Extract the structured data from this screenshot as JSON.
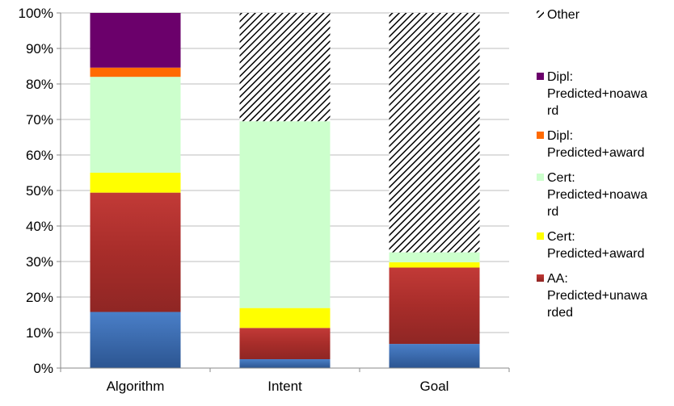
{
  "chart_data": {
    "type": "bar",
    "stacked": true,
    "percent_stacked": true,
    "categories": [
      "Algorithm",
      "Intent",
      "Goal"
    ],
    "y_ticks": [
      "0%",
      "10%",
      "20%",
      "30%",
      "40%",
      "50%",
      "60%",
      "70%",
      "80%",
      "90%",
      "100%"
    ],
    "ylim": [
      0,
      100
    ],
    "grid": true,
    "legend_position": "right",
    "series": [
      {
        "key": "blue",
        "values": [
          15.8,
          2.5,
          6.8
        ],
        "color": "#3f6fb5"
      },
      {
        "key": "aa",
        "name": "AA: Predicted+unawarded",
        "legend_lines": [
          "AA:",
          "Predicted+unawa",
          "rded"
        ],
        "values": [
          33.6,
          8.8,
          21.5
        ],
        "color": "#b5302f"
      },
      {
        "key": "cert_award",
        "name": "Cert: Predicted+award",
        "legend_lines": [
          "Cert:",
          "Predicted+award"
        ],
        "values": [
          5.6,
          5.6,
          1.5
        ],
        "color": "#ffff00"
      },
      {
        "key": "cert_noaward",
        "name": "Cert: Predicted+noaward",
        "legend_lines": [
          "Cert:",
          "Predicted+noawa",
          "rd"
        ],
        "values": [
          27.0,
          52.6,
          2.8
        ],
        "color": "#ccffcc"
      },
      {
        "key": "dipl_award",
        "name": "Dipl: Predicted+award",
        "legend_lines": [
          "Dipl:",
          "Predicted+award"
        ],
        "values": [
          2.6,
          0,
          0
        ],
        "color": "#ff6a00"
      },
      {
        "key": "dipl_noaward",
        "name": "Dipl: Predicted+noaward",
        "legend_lines": [
          "Dipl:",
          "Predicted+noawa",
          "rd"
        ],
        "values": [
          15.4,
          0,
          0
        ],
        "color": "#6b006b"
      },
      {
        "key": "other",
        "name": "Other",
        "legend_lines": [
          "Other"
        ],
        "values": [
          0,
          30.5,
          67.4
        ],
        "color": "#000000",
        "pattern": "diagonal-hatch"
      }
    ]
  }
}
